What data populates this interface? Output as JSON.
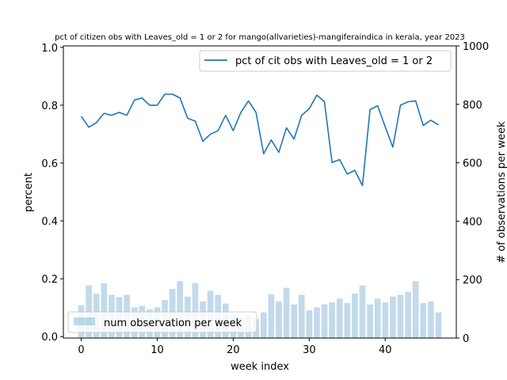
{
  "chart_data": {
    "type": "bar+line",
    "title": "pct of citizen obs with Leaves_old = 1 or 2 for mango(allvarieties)-mangiferaindica in kerala, year 2023",
    "xlabel": "week index",
    "ylabel_left": "percent",
    "ylabel_right": "# of observations per week",
    "xlim": [
      -2.35,
      49.35
    ],
    "ylim_left": [
      -0.005,
      1.005
    ],
    "ylim_right": [
      0,
      1000
    ],
    "x_ticks": [
      0,
      10,
      20,
      30,
      40
    ],
    "y_left_ticks": [
      0.0,
      0.2,
      0.4,
      0.6,
      0.8,
      1.0
    ],
    "y_right_ticks": [
      0,
      200,
      400,
      600,
      800,
      1000
    ],
    "grid": false,
    "line_series": {
      "name": "pct of cit obs with Leaves_old = 1 or 2",
      "color": "#1f77b4",
      "legend_position": "upper right",
      "x": [
        0,
        1,
        2,
        3,
        4,
        5,
        6,
        7,
        8,
        9,
        10,
        11,
        12,
        13,
        14,
        15,
        16,
        17,
        18,
        19,
        20,
        21,
        22,
        23,
        24,
        25,
        26,
        27,
        28,
        29,
        30,
        31,
        32,
        33,
        34,
        35,
        36,
        37,
        38,
        39,
        40,
        41,
        42,
        43,
        44,
        45,
        46,
        47
      ],
      "values": [
        0.762,
        0.724,
        0.74,
        0.772,
        0.765,
        0.775,
        0.765,
        0.818,
        0.825,
        0.8,
        0.8,
        0.838,
        0.838,
        0.825,
        0.755,
        0.745,
        0.675,
        0.7,
        0.712,
        0.765,
        0.712,
        0.775,
        0.815,
        0.775,
        0.632,
        0.68,
        0.637,
        0.722,
        0.683,
        0.765,
        0.788,
        0.835,
        0.812,
        0.602,
        0.612,
        0.562,
        0.575,
        0.522,
        0.785,
        0.798,
        0.725,
        0.655,
        0.8,
        0.812,
        0.815,
        0.73,
        0.748,
        0.732
      ]
    },
    "bar_series": {
      "name": "num observation per week",
      "color": "#1f77b4",
      "alpha": 0.27,
      "legend_position": "lower left",
      "x": [
        0,
        1,
        2,
        3,
        4,
        5,
        6,
        7,
        8,
        9,
        10,
        11,
        12,
        13,
        14,
        15,
        16,
        17,
        18,
        19,
        20,
        21,
        22,
        23,
        24,
        25,
        26,
        27,
        28,
        29,
        30,
        31,
        32,
        33,
        34,
        35,
        36,
        37,
        38,
        39,
        40,
        41,
        42,
        43,
        44,
        45,
        46,
        47
      ],
      "values": [
        112,
        180,
        152,
        188,
        148,
        140,
        148,
        105,
        110,
        98,
        105,
        130,
        168,
        195,
        142,
        188,
        125,
        162,
        148,
        118,
        80,
        70,
        75,
        65,
        88,
        150,
        125,
        172,
        115,
        148,
        95,
        105,
        115,
        122,
        135,
        120,
        152,
        180,
        115,
        135,
        122,
        142,
        148,
        158,
        195,
        120,
        125,
        88
      ]
    }
  }
}
